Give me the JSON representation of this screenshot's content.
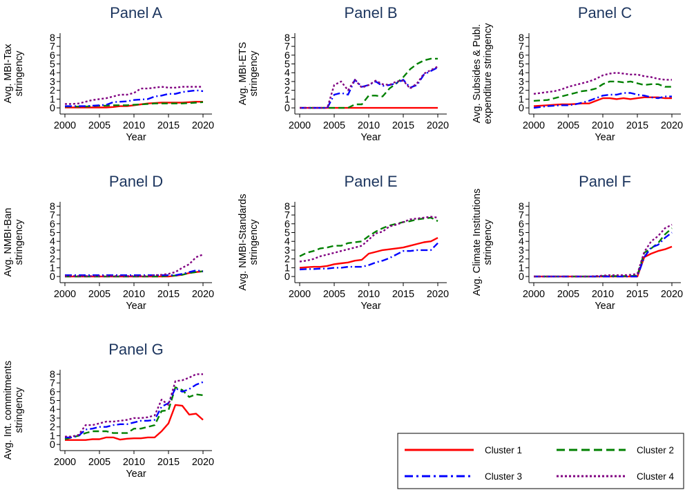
{
  "chart_data": [
    {
      "panel": "A",
      "type": "line",
      "title": "Panel A",
      "xlabel": "Year",
      "ylabel": [
        "Avg. MBI-Tax",
        "stringency"
      ],
      "x": [
        2000,
        2001,
        2002,
        2003,
        2004,
        2005,
        2006,
        2007,
        2008,
        2009,
        2010,
        2011,
        2012,
        2013,
        2014,
        2015,
        2016,
        2017,
        2018,
        2019,
        2020
      ],
      "xticks": [
        2000,
        2005,
        2010,
        2015,
        2020
      ],
      "yticks": [
        0,
        1,
        2,
        3,
        4,
        5,
        6,
        7,
        8
      ],
      "ylim": [
        -0.7,
        8.5
      ],
      "xlim": [
        1999.3,
        2021.3
      ],
      "series": [
        {
          "name": "Cluster 1",
          "values": [
            0.05,
            0.05,
            0.05,
            0.05,
            0.05,
            0.05,
            0.05,
            0.1,
            0.2,
            0.2,
            0.3,
            0.4,
            0.5,
            0.55,
            0.6,
            0.6,
            0.6,
            0.6,
            0.65,
            0.7,
            0.7
          ]
        },
        {
          "name": "Cluster 2",
          "values": [
            0.15,
            0.15,
            0.15,
            0.15,
            0.2,
            0.25,
            0.25,
            0.3,
            0.3,
            0.3,
            0.35,
            0.4,
            0.45,
            0.5,
            0.5,
            0.5,
            0.5,
            0.5,
            0.55,
            0.6,
            0.65
          ]
        },
        {
          "name": "Cluster 3",
          "values": [
            0.2,
            0.2,
            0.2,
            0.2,
            0.25,
            0.3,
            0.35,
            0.65,
            0.7,
            0.75,
            0.9,
            0.95,
            1.0,
            1.3,
            1.4,
            1.6,
            1.6,
            1.8,
            1.9,
            2.0,
            1.9
          ]
        },
        {
          "name": "Cluster 4",
          "values": [
            0.45,
            0.45,
            0.5,
            0.7,
            0.9,
            1.0,
            1.1,
            1.3,
            1.5,
            1.5,
            1.7,
            2.2,
            2.2,
            2.3,
            2.4,
            2.3,
            2.3,
            2.4,
            2.4,
            2.4,
            2.4
          ]
        }
      ]
    },
    {
      "panel": "B",
      "type": "line",
      "title": "Panel B",
      "xlabel": "Year",
      "ylabel": [
        "Avg. MBI-ETS",
        "stringency"
      ],
      "x": [
        2000,
        2001,
        2002,
        2003,
        2004,
        2005,
        2006,
        2007,
        2008,
        2009,
        2010,
        2011,
        2012,
        2013,
        2014,
        2015,
        2016,
        2017,
        2018,
        2019,
        2020
      ],
      "xticks": [
        2000,
        2005,
        2010,
        2015,
        2020
      ],
      "yticks": [
        0,
        1,
        2,
        3,
        4,
        5,
        6,
        7,
        8
      ],
      "ylim": [
        -0.7,
        8.5
      ],
      "xlim": [
        1999.3,
        2021.3
      ],
      "series": [
        {
          "name": "Cluster 1",
          "values": [
            0,
            0,
            0,
            0,
            0,
            0,
            0,
            0,
            0,
            0,
            0,
            0,
            0,
            0,
            0,
            0,
            0,
            0,
            0,
            0,
            0
          ]
        },
        {
          "name": "Cluster 2",
          "values": [
            0,
            0,
            0,
            0,
            0,
            0,
            0,
            0,
            0.4,
            0.4,
            1.4,
            1.4,
            1.3,
            2.2,
            2.8,
            3.5,
            4.4,
            5.0,
            5.4,
            5.6,
            5.6
          ]
        },
        {
          "name": "Cluster 3",
          "values": [
            0,
            0,
            0,
            0,
            0,
            1.5,
            1.7,
            1.5,
            3.2,
            2.4,
            2.6,
            3.0,
            2.5,
            2.6,
            2.8,
            3.2,
            2.3,
            2.6,
            3.8,
            4.2,
            4.6
          ]
        },
        {
          "name": "Cluster 4",
          "values": [
            0,
            0,
            0,
            0,
            0,
            2.6,
            3.0,
            2.0,
            3.2,
            2.3,
            2.6,
            3.1,
            2.7,
            2.6,
            3.0,
            3.1,
            2.2,
            2.8,
            3.9,
            4.3,
            4.7
          ]
        }
      ]
    },
    {
      "panel": "C",
      "type": "line",
      "title": "Panel C",
      "xlabel": "Year",
      "ylabel": [
        "Avg. Subsides & Publ.",
        "expenditure stringency"
      ],
      "x": [
        2000,
        2001,
        2002,
        2003,
        2004,
        2005,
        2006,
        2007,
        2008,
        2009,
        2010,
        2011,
        2012,
        2013,
        2014,
        2015,
        2016,
        2017,
        2018,
        2019,
        2020
      ],
      "xticks": [
        2000,
        2005,
        2010,
        2015,
        2020
      ],
      "yticks": [
        0,
        1,
        2,
        3,
        4,
        5,
        6,
        7,
        8
      ],
      "ylim": [
        -0.7,
        8.5
      ],
      "xlim": [
        1999.3,
        2021.3
      ],
      "series": [
        {
          "name": "Cluster 1",
          "values": [
            0.2,
            0.25,
            0.3,
            0.35,
            0.4,
            0.4,
            0.45,
            0.5,
            0.5,
            0.8,
            1.1,
            1.1,
            1.0,
            1.1,
            1.0,
            1.1,
            1.2,
            1.2,
            1.2,
            1.1,
            1.1
          ]
        },
        {
          "name": "Cluster 2",
          "values": [
            0.8,
            0.85,
            0.9,
            1.1,
            1.3,
            1.5,
            1.7,
            1.9,
            2.0,
            2.2,
            2.7,
            3.0,
            3.0,
            2.9,
            3.0,
            2.8,
            2.6,
            2.7,
            2.7,
            2.4,
            2.4
          ]
        },
        {
          "name": "Cluster 3",
          "values": [
            0,
            0.1,
            0.2,
            0.25,
            0.3,
            0.3,
            0.4,
            0.6,
            0.8,
            1.1,
            1.4,
            1.5,
            1.5,
            1.7,
            1.7,
            1.5,
            1.4,
            1.2,
            1.1,
            1.3,
            1.3
          ]
        },
        {
          "name": "Cluster 4",
          "values": [
            1.6,
            1.7,
            1.8,
            1.9,
            2.1,
            2.4,
            2.6,
            2.8,
            3.0,
            3.3,
            3.7,
            3.9,
            4.0,
            3.9,
            3.8,
            3.8,
            3.6,
            3.5,
            3.3,
            3.2,
            3.2
          ]
        }
      ]
    },
    {
      "panel": "D",
      "type": "line",
      "title": "Panel D",
      "xlabel": "Year",
      "ylabel": [
        "Avg. NMBI-Ban",
        "stringency"
      ],
      "x": [
        2000,
        2001,
        2002,
        2003,
        2004,
        2005,
        2006,
        2007,
        2008,
        2009,
        2010,
        2011,
        2012,
        2013,
        2014,
        2015,
        2016,
        2017,
        2018,
        2019,
        2020
      ],
      "xticks": [
        2000,
        2005,
        2010,
        2015,
        2020
      ],
      "yticks": [
        0,
        1,
        2,
        3,
        4,
        5,
        6,
        7,
        8
      ],
      "ylim": [
        -0.7,
        8.5
      ],
      "xlim": [
        1999.3,
        2021.3
      ],
      "series": [
        {
          "name": "Cluster 1",
          "values": [
            0,
            0,
            0,
            0,
            0,
            0,
            0,
            0,
            0,
            0,
            0,
            0,
            0,
            0,
            0,
            0,
            0.1,
            0.2,
            0.4,
            0.5,
            0.6
          ]
        },
        {
          "name": "Cluster 2",
          "values": [
            0,
            0,
            0,
            0,
            0,
            0,
            0,
            0,
            0,
            0,
            0,
            0,
            0,
            0,
            0,
            0.1,
            0.1,
            0.2,
            0.4,
            0.5,
            0.6
          ]
        },
        {
          "name": "Cluster 3",
          "values": [
            0.15,
            0.15,
            0.15,
            0.15,
            0.15,
            0.15,
            0.15,
            0.15,
            0.15,
            0.15,
            0.15,
            0.15,
            0.15,
            0.15,
            0.15,
            0.15,
            0.15,
            0.3,
            0.5,
            0.7,
            0.6
          ]
        },
        {
          "name": "Cluster 4",
          "values": [
            0.05,
            0.05,
            0.05,
            0.05,
            0.05,
            0.05,
            0.05,
            0.05,
            0.05,
            0.05,
            0.05,
            0.05,
            0.05,
            0.15,
            0.2,
            0.3,
            0.5,
            1.0,
            1.4,
            2.2,
            2.5
          ]
        }
      ]
    },
    {
      "panel": "E",
      "type": "line",
      "title": "Panel E",
      "xlabel": "Year",
      "ylabel": [
        "Avg. NMBI-Standards",
        "stringency"
      ],
      "x": [
        2000,
        2001,
        2002,
        2003,
        2004,
        2005,
        2006,
        2007,
        2008,
        2009,
        2010,
        2011,
        2012,
        2013,
        2014,
        2015,
        2016,
        2017,
        2018,
        2019,
        2020
      ],
      "xticks": [
        2000,
        2005,
        2010,
        2015,
        2020
      ],
      "yticks": [
        0,
        1,
        2,
        3,
        4,
        5,
        6,
        7,
        8
      ],
      "ylim": [
        -0.7,
        8.5
      ],
      "xlim": [
        1999.3,
        2021.3
      ],
      "series": [
        {
          "name": "Cluster 1",
          "values": [
            1.0,
            1.05,
            1.1,
            1.1,
            1.2,
            1.4,
            1.5,
            1.6,
            1.8,
            1.9,
            2.6,
            2.8,
            3.0,
            3.1,
            3.2,
            3.3,
            3.5,
            3.7,
            3.9,
            4.0,
            4.4
          ]
        },
        {
          "name": "Cluster 2",
          "values": [
            2.3,
            2.7,
            2.9,
            3.2,
            3.3,
            3.5,
            3.5,
            3.8,
            3.9,
            4.0,
            4.6,
            5.1,
            5.5,
            5.8,
            6.0,
            6.2,
            6.3,
            6.5,
            6.6,
            6.7,
            6.3
          ]
        },
        {
          "name": "Cluster 3",
          "values": [
            0.8,
            0.85,
            0.85,
            0.9,
            0.9,
            1.0,
            1.0,
            1.1,
            1.1,
            1.1,
            1.3,
            1.6,
            1.8,
            2.1,
            2.5,
            2.9,
            2.9,
            3.0,
            3.0,
            3.0,
            3.8
          ]
        },
        {
          "name": "Cluster 4",
          "values": [
            1.7,
            1.8,
            2.0,
            2.3,
            2.5,
            2.7,
            2.9,
            3.1,
            3.3,
            3.5,
            4.2,
            4.9,
            5.1,
            5.7,
            5.9,
            6.2,
            6.5,
            6.6,
            6.7,
            6.8,
            6.7
          ]
        }
      ]
    },
    {
      "panel": "F",
      "type": "line",
      "title": "Panel F",
      "xlabel": "Year",
      "ylabel": [
        "Avg. Climate Institutions",
        "stringency"
      ],
      "x": [
        2000,
        2001,
        2002,
        2003,
        2004,
        2005,
        2006,
        2007,
        2008,
        2009,
        2010,
        2011,
        2012,
        2013,
        2014,
        2015,
        2016,
        2017,
        2018,
        2019,
        2020
      ],
      "xticks": [
        2000,
        2005,
        2010,
        2015,
        2020
      ],
      "yticks": [
        0,
        1,
        2,
        3,
        4,
        5,
        6,
        7,
        8
      ],
      "ylim": [
        -0.7,
        8.5
      ],
      "xlim": [
        1999.3,
        2021.3
      ],
      "series": [
        {
          "name": "Cluster 1",
          "values": [
            0,
            0,
            0,
            0,
            0,
            0,
            0,
            0,
            0,
            0,
            0,
            0,
            0,
            0,
            0,
            0,
            2.2,
            2.6,
            2.9,
            3.1,
            3.4
          ]
        },
        {
          "name": "Cluster 2",
          "values": [
            0,
            0,
            0,
            0,
            0,
            0,
            0,
            0,
            0,
            0,
            0.05,
            0.05,
            0.05,
            0.05,
            0.05,
            0.1,
            2.7,
            3.2,
            3.8,
            4.8,
            5.5
          ]
        },
        {
          "name": "Cluster 3",
          "values": [
            0,
            0,
            0,
            0,
            0,
            0,
            0,
            0,
            0,
            0,
            0,
            0,
            0,
            0,
            0,
            0,
            2.2,
            3.3,
            3.6,
            4.4,
            5.0
          ]
        },
        {
          "name": "Cluster 4",
          "values": [
            0,
            0,
            0,
            0,
            0,
            0,
            0,
            0,
            0,
            0.05,
            0.1,
            0.15,
            0.15,
            0.15,
            0.2,
            0.3,
            2.8,
            4.0,
            4.6,
            5.5,
            5.9
          ]
        }
      ]
    },
    {
      "panel": "G",
      "type": "line",
      "title": "Panel G",
      "xlabel": "Year",
      "ylabel": [
        "Avg. Int. commitments",
        "stringency"
      ],
      "x": [
        2000,
        2001,
        2002,
        2003,
        2004,
        2005,
        2006,
        2007,
        2008,
        2009,
        2010,
        2011,
        2012,
        2013,
        2014,
        2015,
        2016,
        2017,
        2018,
        2019,
        2020
      ],
      "xticks": [
        2000,
        2005,
        2010,
        2015,
        2020
      ],
      "yticks": [
        0,
        1,
        2,
        3,
        4,
        5,
        6,
        7,
        8
      ],
      "ylim": [
        -0.7,
        8.5
      ],
      "xlim": [
        1999.3,
        2021.3
      ],
      "series": [
        {
          "name": "Cluster 1",
          "values": [
            0.5,
            0.5,
            0.5,
            0.5,
            0.6,
            0.6,
            0.8,
            0.8,
            0.55,
            0.65,
            0.7,
            0.7,
            0.8,
            0.8,
            1.5,
            2.4,
            4.5,
            4.4,
            3.4,
            3.5,
            2.8
          ]
        },
        {
          "name": "Cluster 2",
          "values": [
            0.6,
            0.8,
            1.0,
            1.3,
            1.5,
            1.5,
            1.5,
            1.3,
            1.3,
            1.3,
            1.8,
            1.8,
            2.0,
            2.2,
            3.8,
            3.9,
            6.5,
            6.2,
            5.4,
            5.7,
            5.6
          ]
        },
        {
          "name": "Cluster 3",
          "values": [
            0.8,
            0.8,
            1.0,
            1.7,
            1.8,
            2.0,
            2.0,
            2.2,
            2.3,
            2.3,
            2.5,
            2.7,
            2.7,
            2.8,
            4.3,
            4.7,
            6.4,
            6.0,
            6.3,
            6.8,
            7.1
          ]
        },
        {
          "name": "Cluster 4",
          "values": [
            0.9,
            0.9,
            1.1,
            2.2,
            2.2,
            2.4,
            2.6,
            2.6,
            2.7,
            2.8,
            3.0,
            3.0,
            3.1,
            3.3,
            5.1,
            4.5,
            7.2,
            7.3,
            7.6,
            8.0,
            8.0
          ]
        }
      ]
    }
  ],
  "legend": {
    "placement": "bottom-right",
    "entries": [
      {
        "label": "Cluster 1",
        "color": "#ff0000",
        "dash": "solid"
      },
      {
        "label": "Cluster 2",
        "color": "#008000",
        "dash": "dash"
      },
      {
        "label": "Cluster 3",
        "color": "#0000ff",
        "dash": "dashdot"
      },
      {
        "label": "Cluster 4",
        "color": "#800080",
        "dash": "dot"
      }
    ]
  }
}
